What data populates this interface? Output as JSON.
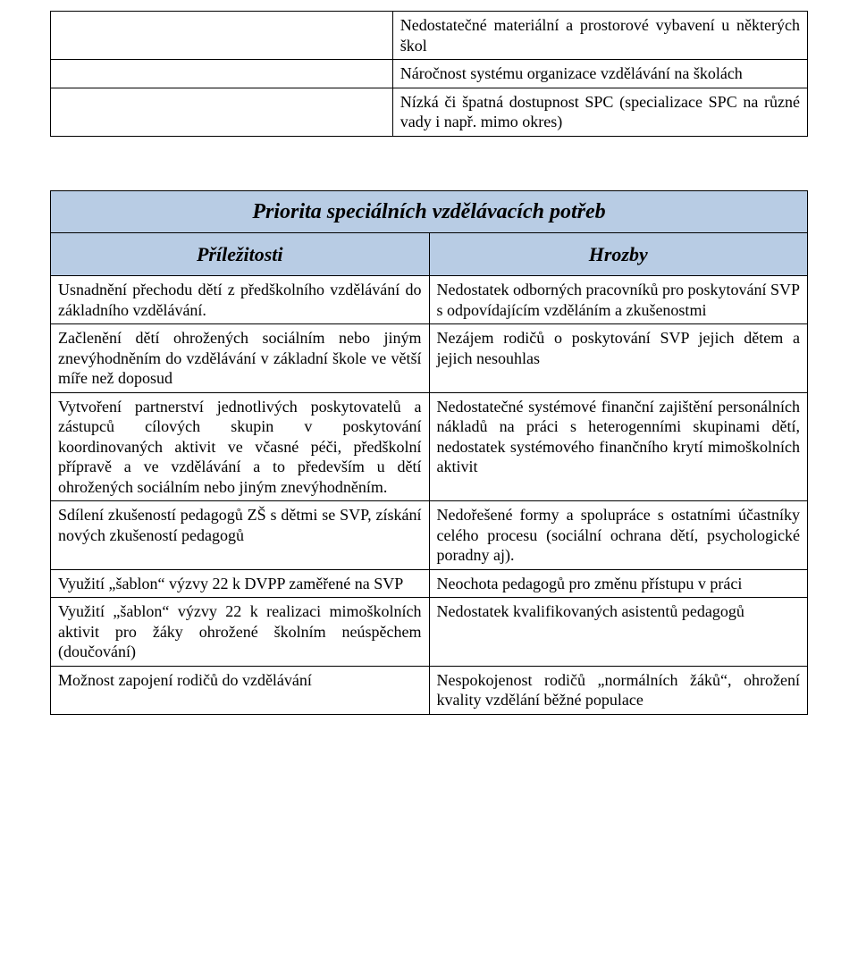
{
  "top_table": {
    "rows": [
      {
        "left": "",
        "right": "Nedostatečné materiální a prostorové vybavení u některých škol"
      },
      {
        "left": "",
        "right": "Náročnost systému organizace vzdělávání na školách"
      },
      {
        "left": "",
        "right": "Nízká či špatná dostupnost SPC (specializace SPC na různé vady i např. mimo okres)"
      }
    ]
  },
  "swot": {
    "title": "Priorita speciálních vzdělávacích potřeb",
    "left_header": "Příležitosti",
    "right_header": "Hrozby",
    "rows": [
      {
        "left": "Usnadnění přechodu dětí z předškolního vzdělávání do základního vzdělávání.",
        "right": "Nedostatek odborných pracovníků pro poskytování SVP s odpovídajícím vzděláním a zkušenostmi"
      },
      {
        "left": "Začlenění dětí ohrožených sociálním nebo jiným znevýhodněním do vzdělávání v základní škole ve větší míře než doposud",
        "right": "Nezájem rodičů o poskytování SVP jejich dětem a jejich nesouhlas"
      },
      {
        "left": "Vytvoření partnerství jednotlivých poskytovatelů a zástupců cílových skupin v poskytování koordinovaných aktivit ve včasné péči, předškolní přípravě a ve vzdělávání a to především u dětí ohrožených sociálním nebo jiným znevýhodněním.",
        "right": "Nedostatečné systémové finanční zajištění personálních nákladů na práci s heterogenními skupinami dětí, nedostatek systémového finančního krytí mimoškolních aktivit"
      },
      {
        "left": "Sdílení zkušeností pedagogů ZŠ s dětmi se SVP, získání nových zkušeností pedagogů",
        "right": "Nedořešené formy a spolupráce s ostatními účastníky celého procesu (sociální ochrana dětí, psychologické poradny aj)."
      },
      {
        "left": "Využití „šablon“ výzvy 22 k DVPP zaměřené na SVP",
        "right": "Neochota pedagogů pro změnu přístupu v práci"
      },
      {
        "left": "Využití „šablon“ výzvy 22 k realizaci mimoškolních aktivit pro žáky ohrožené školním neúspěchem (doučování)",
        "right": "Nedostatek kvalifikovaných asistentů pedagogů"
      },
      {
        "left": "Možnost zapojení rodičů do vzdělávání",
        "right": "Nespokojenost rodičů „normálních žáků“, ohrožení kvality vzdělání běžné populace"
      }
    ]
  },
  "colors": {
    "header_bg": "#b8cce4",
    "border": "#000000",
    "text": "#000000",
    "background": "#ffffff"
  }
}
